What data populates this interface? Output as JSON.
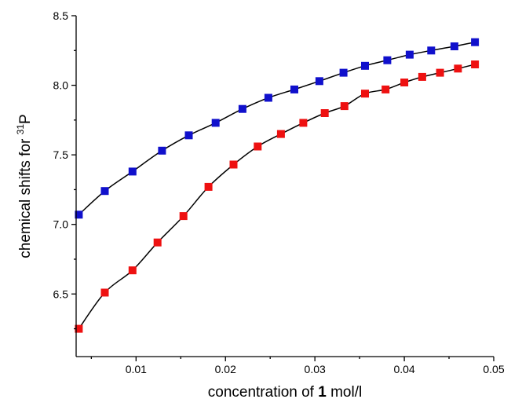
{
  "chart_data": {
    "type": "scatter",
    "title": "",
    "xlabel": {
      "prefix": "concentration of ",
      "bold": "1",
      "suffix": " mol/l"
    },
    "ylabel": {
      "prefix": "chemical shifts for ",
      "sup": "31",
      "suffix": "P"
    },
    "xlim": [
      0.0033,
      0.05
    ],
    "ylim": [
      6.05,
      8.5
    ],
    "x_ticks": [
      0.01,
      0.02,
      0.03,
      0.04,
      0.05
    ],
    "x_tick_labels": [
      "0.01",
      "0.02",
      "0.03",
      "0.04",
      "0.05"
    ],
    "x_minor_ticks": [
      0.005,
      0.015,
      0.025,
      0.035,
      0.045
    ],
    "y_ticks": [
      6.5,
      7.0,
      7.5,
      8.0,
      8.5
    ],
    "y_tick_labels": [
      "6.5",
      "7.0",
      "7.5",
      "8.0",
      "8.5"
    ],
    "y_minor_ticks": [
      6.25,
      6.75,
      7.25,
      7.75,
      8.25
    ],
    "grid": false,
    "legend": "none",
    "series": [
      {
        "color": "#1010cc",
        "marker": "square",
        "fit_line": true,
        "x": [
          0.0036,
          0.0065,
          0.0096,
          0.0129,
          0.0159,
          0.0189,
          0.0219,
          0.0248,
          0.0277,
          0.0305,
          0.0332,
          0.0356,
          0.0381,
          0.0406,
          0.043,
          0.0456,
          0.0479
        ],
        "y": [
          7.07,
          7.24,
          7.38,
          7.53,
          7.64,
          7.73,
          7.83,
          7.91,
          7.97,
          8.03,
          8.09,
          8.14,
          8.18,
          8.22,
          8.25,
          8.28,
          8.31
        ]
      },
      {
        "color": "#ee1111",
        "marker": "square",
        "fit_line": true,
        "x": [
          0.0036,
          0.0065,
          0.0096,
          0.0124,
          0.0153,
          0.0181,
          0.0209,
          0.0236,
          0.0262,
          0.0287,
          0.0311,
          0.0333,
          0.0356,
          0.0379,
          0.04,
          0.042,
          0.044,
          0.046,
          0.0479
        ],
        "y": [
          6.25,
          6.51,
          6.67,
          6.87,
          7.06,
          7.27,
          7.43,
          7.56,
          7.65,
          7.73,
          7.8,
          7.85,
          7.94,
          7.97,
          8.02,
          8.06,
          8.09,
          8.12,
          8.15
        ]
      }
    ]
  }
}
